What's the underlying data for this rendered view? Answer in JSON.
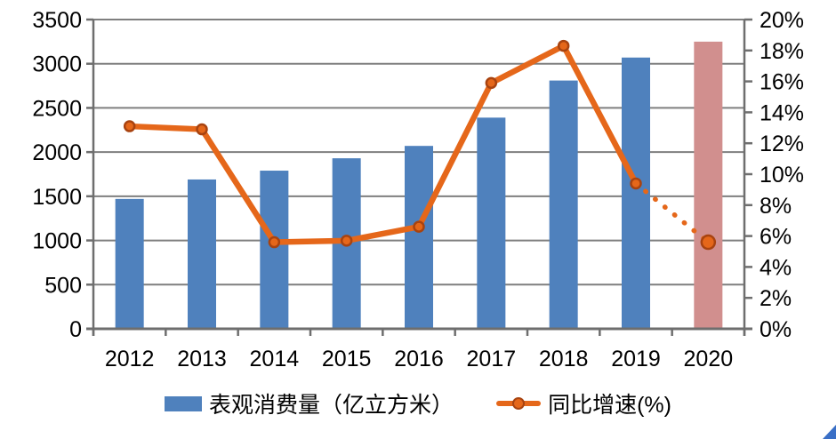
{
  "chart_data": {
    "type": "bar",
    "subtype": "combo-bar-line-dual-axis",
    "categories": [
      "2012",
      "2013",
      "2014",
      "2015",
      "2016",
      "2017",
      "2018",
      "2019",
      "2020"
    ],
    "series": [
      {
        "name": "表观消费量（亿立方米）",
        "type": "bar",
        "axis": "left",
        "values": [
          1470,
          1690,
          1790,
          1930,
          2070,
          2390,
          2810,
          3070,
          3250
        ],
        "color": "#4F81BD",
        "last_bar_color": "#D18F8E",
        "last_bar_index": 8
      },
      {
        "name": "同比增速(%)",
        "type": "line",
        "axis": "right",
        "values": [
          13.1,
          12.9,
          5.6,
          5.7,
          6.6,
          15.9,
          18.3,
          9.4,
          5.6
        ],
        "color": "#E5671A",
        "marker_stroke": "#A84310",
        "dotted_from_index": 7
      }
    ],
    "left_axis": {
      "min": 0,
      "max": 3500,
      "step": 500,
      "tick_labels": [
        "3500",
        "3000",
        "2500",
        "2000",
        "1500",
        "1000",
        "500",
        "0"
      ]
    },
    "right_axis": {
      "min": 0,
      "max": 20,
      "step": 2,
      "tick_labels": [
        "20%",
        "18%",
        "16%",
        "14%",
        "12%",
        "10%",
        "8%",
        "6%",
        "4%",
        "2%",
        "0%"
      ]
    },
    "grid": "horizontal gridlines at each left-axis step, plot bordered left and right",
    "legend_position": "bottom",
    "gridline_color": "#7F7F7F",
    "axis_line_color": "#6E6E6E",
    "label_color": "#000000"
  },
  "legend": {
    "bar_label": "表观消费量（亿立方米）",
    "line_label": "同比增速(%)"
  },
  "decorations": {
    "corner_triangle_color": "#3A6FC6"
  }
}
